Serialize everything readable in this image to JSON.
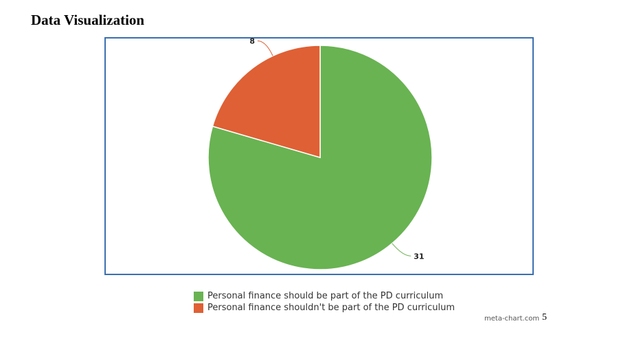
{
  "page": {
    "title": "Data Visualization",
    "page_number": "5",
    "credit": "meta-chart.com"
  },
  "colors": {
    "frame": "#3a6fb0"
  },
  "chart_data": {
    "type": "pie",
    "slices": [
      {
        "label": "Personal finance should be part of the PD curriculum",
        "value": 31,
        "color": "#69b352"
      },
      {
        "label": "Personal finance shouldn't be part of the PD curriculum",
        "value": 8,
        "color": "#df6034"
      }
    ],
    "legend_position": "bottom"
  }
}
